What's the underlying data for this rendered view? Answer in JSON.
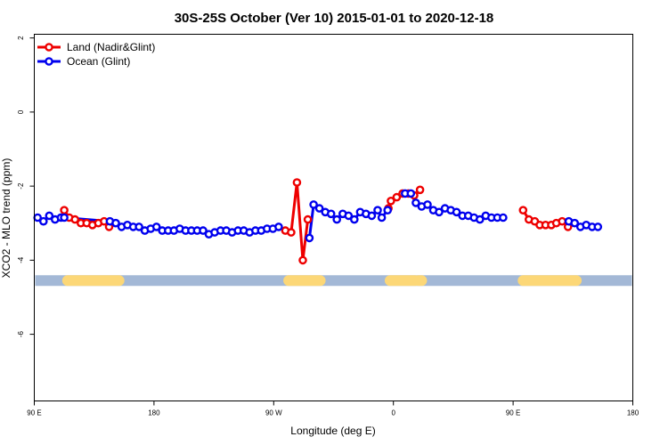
{
  "chart_data": {
    "type": "line",
    "title": "30S-25S October (Ver 10)   2015-01-01 to 2020-12-18",
    "xlabel": "Longitude (deg E)",
    "ylabel": "XCO2 - MLO trend (ppm)",
    "xlim": [
      90,
      450
    ],
    "ylim": [
      -7.8,
      2.1
    ],
    "x_ticks": [
      {
        "value": 90,
        "label": "90 E"
      },
      {
        "value": 162,
        "label": "180"
      },
      {
        "value": 234,
        "label": "90 W"
      },
      {
        "value": 306,
        "label": "0"
      },
      {
        "value": 378,
        "label": "90 E"
      },
      {
        "value": 450,
        "label": "180"
      }
    ],
    "y_ticks": [
      {
        "value": 2,
        "label": "2"
      },
      {
        "value": 0,
        "label": "0"
      },
      {
        "value": -2,
        "label": "-2"
      },
      {
        "value": -4,
        "label": "-4"
      },
      {
        "value": -6,
        "label": "-6"
      }
    ],
    "legend_position": "top-left",
    "grid": false,
    "colors": {
      "land": "#ee0000",
      "ocean": "#0000ee",
      "ocean_band": "#a3b8d6",
      "land_band": "#fcd777"
    },
    "band": {
      "y_center": -4.55,
      "land_segments": [
        [
          110,
          141
        ],
        [
          243,
          262
        ],
        [
          304,
          319
        ],
        [
          321,
          323
        ],
        [
          384,
          416
        ]
      ]
    },
    "series": [
      {
        "name": "Land (Nadir&Glint)",
        "color": "#ee0000",
        "segments": [
          [
            [
              108.0,
              -2.65
            ],
            [
              111.0,
              -2.85
            ],
            [
              114.5,
              -2.9
            ],
            [
              118.0,
              -3.0
            ],
            [
              121.5,
              -3.0
            ],
            [
              125.0,
              -3.05
            ],
            [
              128.5,
              -3.0
            ],
            [
              132.0,
              -2.95
            ],
            [
              135.0,
              -3.1
            ]
          ],
          [
            [
              241.0,
              -3.2
            ],
            [
              244.5,
              -3.25
            ],
            [
              248.0,
              -1.9
            ],
            [
              251.5,
              -4.0
            ],
            [
              254.5,
              -2.9
            ]
          ],
          [
            [
              303.0,
              -2.6
            ],
            [
              304.5,
              -2.4
            ],
            [
              308.0,
              -2.3
            ],
            [
              311.5,
              -2.2
            ],
            [
              315.0,
              -2.2
            ],
            [
              318.5,
              -2.25
            ],
            [
              322.0,
              -2.1
            ]
          ],
          [
            [
              384.0,
              -2.65
            ],
            [
              387.5,
              -2.9
            ],
            [
              391.0,
              -2.95
            ],
            [
              394.0,
              -3.05
            ],
            [
              397.5,
              -3.05
            ],
            [
              401.0,
              -3.05
            ],
            [
              404.0,
              -3.0
            ],
            [
              407.5,
              -2.95
            ],
            [
              411.0,
              -3.1
            ]
          ]
        ]
      },
      {
        "name": "Ocean (Glint)",
        "color": "#0000ee",
        "segments": [
          [
            [
              92.0,
              -2.85
            ],
            [
              95.5,
              -2.95
            ],
            [
              99.0,
              -2.8
            ],
            [
              102.5,
              -2.9
            ],
            [
              106.0,
              -2.85
            ],
            [
              108.0,
              -2.85
            ],
            [
              135.5,
              -2.95
            ],
            [
              139.0,
              -3.0
            ],
            [
              142.5,
              -3.1
            ],
            [
              146.0,
              -3.05
            ],
            [
              149.5,
              -3.1
            ],
            [
              153.0,
              -3.1
            ],
            [
              156.5,
              -3.2
            ],
            [
              160.0,
              -3.15
            ],
            [
              163.5,
              -3.1
            ],
            [
              167.0,
              -3.2
            ],
            [
              170.5,
              -3.2
            ],
            [
              174.0,
              -3.2
            ],
            [
              177.5,
              -3.15
            ],
            [
              181.0,
              -3.2
            ],
            [
              184.5,
              -3.2
            ],
            [
              188.0,
              -3.2
            ],
            [
              191.5,
              -3.2
            ],
            [
              195.0,
              -3.3
            ],
            [
              198.5,
              -3.25
            ],
            [
              202.0,
              -3.2
            ],
            [
              205.5,
              -3.2
            ],
            [
              209.0,
              -3.25
            ],
            [
              212.5,
              -3.2
            ],
            [
              216.0,
              -3.2
            ],
            [
              219.5,
              -3.25
            ],
            [
              223.0,
              -3.2
            ],
            [
              226.5,
              -3.2
            ],
            [
              230.0,
              -3.15
            ],
            [
              233.5,
              -3.15
            ],
            [
              237.0,
              -3.1
            ]
          ],
          [
            [
              255.5,
              -3.4
            ],
            [
              258.0,
              -2.5
            ],
            [
              261.5,
              -2.6
            ],
            [
              265.0,
              -2.7
            ],
            [
              268.5,
              -2.75
            ],
            [
              272.0,
              -2.9
            ],
            [
              275.5,
              -2.75
            ],
            [
              279.0,
              -2.8
            ],
            [
              282.5,
              -2.9
            ],
            [
              286.0,
              -2.7
            ],
            [
              289.5,
              -2.75
            ],
            [
              293.0,
              -2.8
            ],
            [
              296.5,
              -2.65
            ],
            [
              299.0,
              -2.85
            ],
            [
              302.5,
              -2.65
            ]
          ],
          [
            [
              313.0,
              -2.2
            ],
            [
              316.5,
              -2.2
            ],
            [
              319.5,
              -2.45
            ],
            [
              323.0,
              -2.55
            ],
            [
              326.5,
              -2.5
            ],
            [
              330.0,
              -2.65
            ],
            [
              333.5,
              -2.7
            ],
            [
              337.0,
              -2.6
            ],
            [
              340.5,
              -2.65
            ],
            [
              344.0,
              -2.7
            ],
            [
              347.5,
              -2.8
            ],
            [
              351.0,
              -2.8
            ],
            [
              354.5,
              -2.85
            ],
            [
              358.0,
              -2.9
            ],
            [
              361.5,
              -2.8
            ],
            [
              365.0,
              -2.85
            ],
            [
              368.5,
              -2.85
            ],
            [
              372.0,
              -2.85
            ]
          ],
          [
            [
              411.5,
              -2.95
            ],
            [
              415.0,
              -3.0
            ],
            [
              418.5,
              -3.1
            ],
            [
              422.0,
              -3.05
            ],
            [
              425.5,
              -3.1
            ],
            [
              429.0,
              -3.1
            ]
          ]
        ]
      }
    ]
  }
}
